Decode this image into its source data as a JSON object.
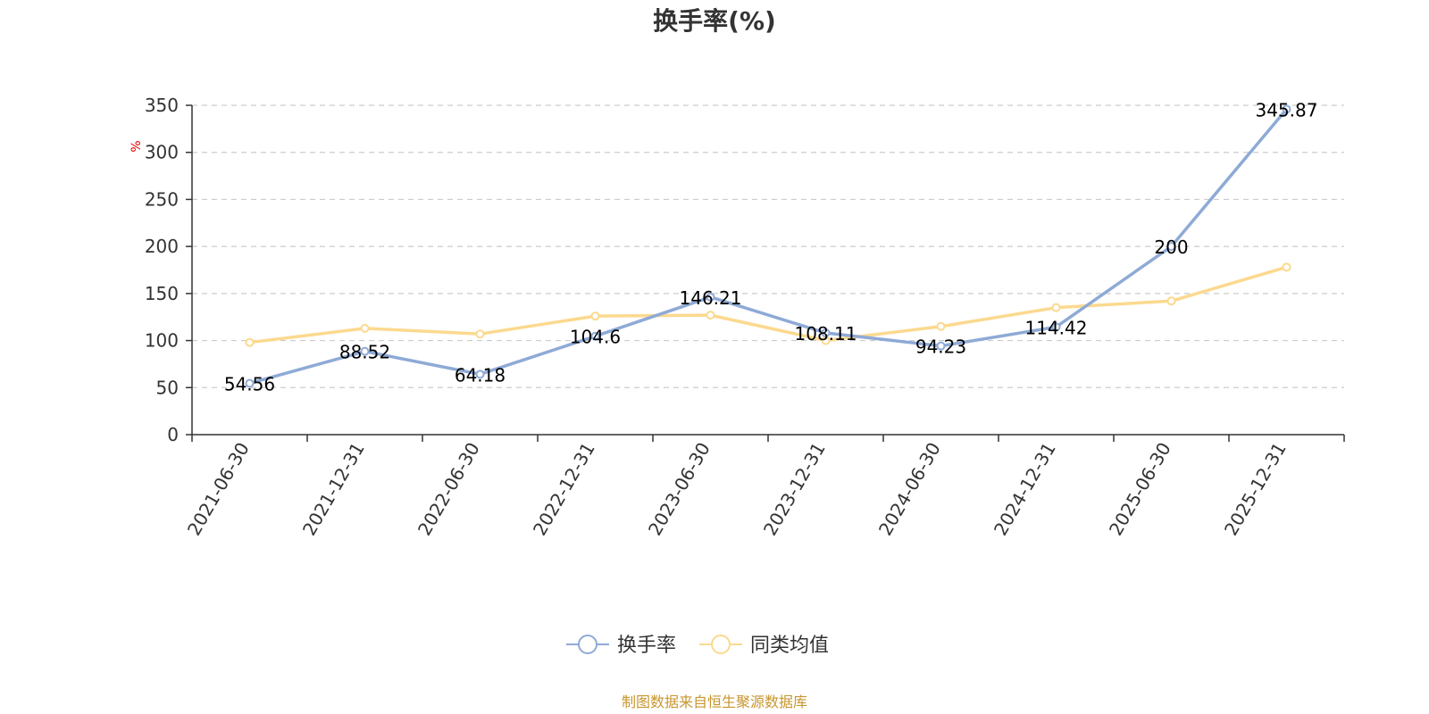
{
  "chart_data": {
    "type": "line",
    "title": "换手率(%)",
    "ylabel": "%",
    "ylim": [
      0,
      350
    ],
    "yticks": [
      0,
      50,
      100,
      150,
      200,
      250,
      300,
      350
    ],
    "categories": [
      "2021-06-30",
      "2021-12-31",
      "2022-06-30",
      "2022-12-31",
      "2023-06-30",
      "2023-12-31",
      "2024-06-30",
      "2024-12-31",
      "2025-06-30",
      "2025-12-31"
    ],
    "series": [
      {
        "name": "换手率",
        "color": "#8eaad6",
        "values": [
          54.56,
          88.52,
          64.18,
          104.6,
          146.21,
          108.11,
          94.23,
          114.42,
          200,
          345.87
        ],
        "labels": [
          "54.56",
          "88.52",
          "64.18",
          "104.6",
          "146.21",
          "108.11",
          "94.23",
          "114.42",
          "200",
          "345.87"
        ]
      },
      {
        "name": "同类均值",
        "color": "#fbd98f",
        "values": [
          98,
          113,
          107,
          126,
          127,
          100,
          115,
          135,
          142,
          178
        ]
      }
    ],
    "grid": true,
    "legend": "bottom-center",
    "source": "制图数据来自恒生聚源数据库"
  }
}
